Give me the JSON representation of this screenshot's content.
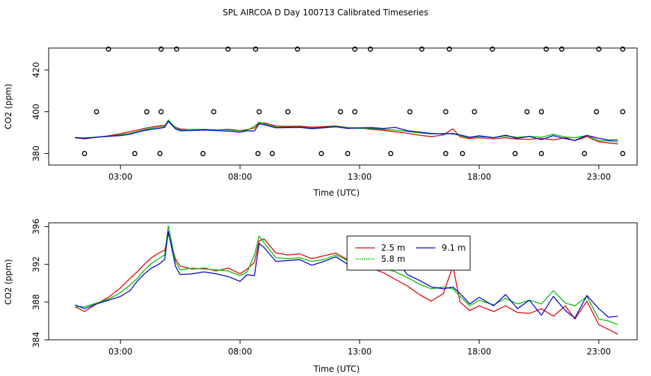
{
  "figure": {
    "title": "SPL AIRCOA D  Day 100713  Calibrated Timeseries"
  },
  "colors": {
    "s25": "#dd0000",
    "s58": "#00bb00",
    "s91": "#0000cc",
    "flags": "#000000"
  },
  "chart_data": [
    {
      "type": "line",
      "panel": "top",
      "xlabel": "Time (UTC)",
      "ylabel": "CO2 (ppm)",
      "xlim": [
        0.0,
        24.6
      ],
      "ylim": [
        374.5,
        430.5
      ],
      "xticks": [
        3,
        8,
        13,
        18,
        23
      ],
      "xtick_labels": [
        "03:00",
        "08:00",
        "13:00",
        "18:00",
        "23:00"
      ],
      "yticks": [
        380,
        400,
        420
      ],
      "ytick_labels": [
        "380",
        "400",
        "420"
      ],
      "legend": "none",
      "flag_points": [
        {
          "x": 1.5,
          "y": 380
        },
        {
          "x": 3.6,
          "y": 380
        },
        {
          "x": 4.65,
          "y": 380
        },
        {
          "x": 6.45,
          "y": 380
        },
        {
          "x": 8.75,
          "y": 380
        },
        {
          "x": 9.35,
          "y": 380
        },
        {
          "x": 11.4,
          "y": 380
        },
        {
          "x": 12.5,
          "y": 380
        },
        {
          "x": 14.3,
          "y": 380
        },
        {
          "x": 16.6,
          "y": 380
        },
        {
          "x": 17.3,
          "y": 380
        },
        {
          "x": 19.5,
          "y": 380
        },
        {
          "x": 20.6,
          "y": 380
        },
        {
          "x": 22.4,
          "y": 380
        },
        {
          "x": 24.0,
          "y": 380
        },
        {
          "x": 2.0,
          "y": 400
        },
        {
          "x": 4.1,
          "y": 400
        },
        {
          "x": 4.7,
          "y": 400
        },
        {
          "x": 6.9,
          "y": 400
        },
        {
          "x": 8.8,
          "y": 400
        },
        {
          "x": 10.0,
          "y": 400
        },
        {
          "x": 12.2,
          "y": 400
        },
        {
          "x": 12.8,
          "y": 400
        },
        {
          "x": 15.1,
          "y": 400
        },
        {
          "x": 16.6,
          "y": 400
        },
        {
          "x": 17.8,
          "y": 400
        },
        {
          "x": 20.0,
          "y": 400
        },
        {
          "x": 20.6,
          "y": 400
        },
        {
          "x": 22.9,
          "y": 400
        },
        {
          "x": 24.0,
          "y": 400
        },
        {
          "x": 2.5,
          "y": 430
        },
        {
          "x": 4.7,
          "y": 430
        },
        {
          "x": 5.35,
          "y": 430
        },
        {
          "x": 7.5,
          "y": 430
        },
        {
          "x": 8.65,
          "y": 430
        },
        {
          "x": 10.4,
          "y": 430
        },
        {
          "x": 12.8,
          "y": 430
        },
        {
          "x": 13.45,
          "y": 430
        },
        {
          "x": 15.6,
          "y": 430
        },
        {
          "x": 16.75,
          "y": 430
        },
        {
          "x": 18.55,
          "y": 430
        },
        {
          "x": 20.8,
          "y": 430
        },
        {
          "x": 21.45,
          "y": 430
        },
        {
          "x": 23.0,
          "y": 430
        },
        {
          "x": 24.0,
          "y": 430
        }
      ]
    },
    {
      "type": "line",
      "panel": "bottom",
      "xlabel": "Time (UTC)",
      "ylabel": "CO2 (ppm)",
      "xlim": [
        0.0,
        24.6
      ],
      "ylim": [
        384.0,
        396.4
      ],
      "xticks": [
        3,
        8,
        13,
        18,
        23
      ],
      "xtick_labels": [
        "03:00",
        "08:00",
        "13:00",
        "18:00",
        "23:00"
      ],
      "yticks": [
        384,
        388,
        392,
        396
      ],
      "ytick_labels": [
        "384",
        "388",
        "392",
        "396"
      ],
      "legend": "top-center",
      "series": [
        {
          "name": "2.5 m",
          "color": "#dd0000",
          "x": [
            1.1,
            1.5,
            2.0,
            2.5,
            3.0,
            3.4,
            3.7,
            4.0,
            4.3,
            4.6,
            4.85,
            5.0,
            5.3,
            5.5,
            6.0,
            6.5,
            7.0,
            7.5,
            8.0,
            8.3,
            8.6,
            8.8,
            9.0,
            9.5,
            10.0,
            10.5,
            11.0,
            11.5,
            12.0,
            12.5,
            13.0,
            13.5,
            14.0,
            14.5,
            15.0,
            15.5,
            16.0,
            16.5,
            16.9,
            17.2,
            17.6,
            18.0,
            18.6,
            19.1,
            19.6,
            20.1,
            20.6,
            21.1,
            21.6,
            22.0,
            22.5,
            23.0,
            23.4,
            23.8
          ],
          "y": [
            387.5,
            387.0,
            387.8,
            388.5,
            389.5,
            390.5,
            391.2,
            392.0,
            392.7,
            393.2,
            393.5,
            395.3,
            392.6,
            391.8,
            391.5,
            391.6,
            391.3,
            391.6,
            391.0,
            391.5,
            392.2,
            394.5,
            394.7,
            393.2,
            393.0,
            393.1,
            392.6,
            392.9,
            393.2,
            392.5,
            392.2,
            391.6,
            391.1,
            390.4,
            389.7,
            388.8,
            388.1,
            388.9,
            391.8,
            388.0,
            387.1,
            387.6,
            387.0,
            387.6,
            386.9,
            386.8,
            387.3,
            386.5,
            387.6,
            386.2,
            388.1,
            385.6,
            385.1,
            384.6
          ]
        },
        {
          "name": "5.8 m",
          "color": "#00bb00",
          "x": [
            1.1,
            1.5,
            2.0,
            2.5,
            3.0,
            3.4,
            3.7,
            4.0,
            4.3,
            4.6,
            4.85,
            5.0,
            5.3,
            5.5,
            6.0,
            6.5,
            7.0,
            7.5,
            8.0,
            8.3,
            8.6,
            8.8,
            9.0,
            9.5,
            10.0,
            10.5,
            11.0,
            11.5,
            12.0,
            12.5,
            13.0,
            13.5,
            14.0,
            14.5,
            15.0,
            15.5,
            16.0,
            16.5,
            16.9,
            17.2,
            17.6,
            18.0,
            18.6,
            19.1,
            19.6,
            20.1,
            20.6,
            21.1,
            21.6,
            22.0,
            22.5,
            23.0,
            23.4,
            23.8
          ],
          "y": [
            387.5,
            387.5,
            387.9,
            388.3,
            389.0,
            389.8,
            390.5,
            391.4,
            392.1,
            392.6,
            393.0,
            396.1,
            392.3,
            391.4,
            391.6,
            391.5,
            391.4,
            391.3,
            390.8,
            391.2,
            393.0,
            395.0,
            394.3,
            392.7,
            392.6,
            392.7,
            392.3,
            392.5,
            393.0,
            392.4,
            392.0,
            392.1,
            391.6,
            391.2,
            390.6,
            389.9,
            389.4,
            389.6,
            389.4,
            388.6,
            387.6,
            388.2,
            387.7,
            388.4,
            387.8,
            388.2,
            387.8,
            389.2,
            387.9,
            387.6,
            388.6,
            386.2,
            386.0,
            385.6
          ]
        },
        {
          "name": "9.1 m",
          "color": "#0000cc",
          "x": [
            1.1,
            1.5,
            2.0,
            2.5,
            3.0,
            3.4,
            3.7,
            4.0,
            4.3,
            4.6,
            4.85,
            5.0,
            5.3,
            5.5,
            6.0,
            6.5,
            7.0,
            7.5,
            8.0,
            8.3,
            8.6,
            8.8,
            9.0,
            9.5,
            10.0,
            10.5,
            11.0,
            11.5,
            12.0,
            12.5,
            13.0,
            13.5,
            14.0,
            14.5,
            15.0,
            15.5,
            16.0,
            16.5,
            16.9,
            17.2,
            17.6,
            18.0,
            18.6,
            19.1,
            19.6,
            20.1,
            20.6,
            21.1,
            21.6,
            22.0,
            22.5,
            23.0,
            23.4,
            23.8
          ],
          "y": [
            387.7,
            387.3,
            387.8,
            388.2,
            388.6,
            389.2,
            390.2,
            391.0,
            391.6,
            392.0,
            392.5,
            395.5,
            391.8,
            390.9,
            391.0,
            391.2,
            391.0,
            390.7,
            390.2,
            390.9,
            390.8,
            394.2,
            393.8,
            392.3,
            392.4,
            392.5,
            391.9,
            392.3,
            392.8,
            392.0,
            392.3,
            392.4,
            392.0,
            392.5,
            390.9,
            390.3,
            389.6,
            389.4,
            389.6,
            388.9,
            387.8,
            388.5,
            387.6,
            388.8,
            387.3,
            388.2,
            386.6,
            388.6,
            387.1,
            386.3,
            388.7,
            387.3,
            386.4,
            386.5
          ]
        }
      ]
    }
  ]
}
